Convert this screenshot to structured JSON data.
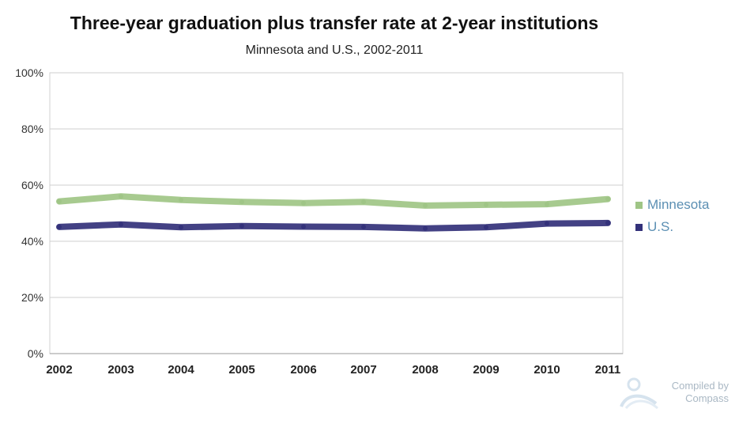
{
  "chart_data": {
    "type": "line",
    "title": "Three-year graduation plus transfer rate at 2-year institutions",
    "subtitle": "Minnesota and U.S., 2002-2011",
    "categories": [
      "2002",
      "2003",
      "2004",
      "2005",
      "2006",
      "2007",
      "2008",
      "2009",
      "2010",
      "2011"
    ],
    "series": [
      {
        "name": "Minnesota",
        "color": "#9fc586",
        "values": [
          54.2,
          56.0,
          54.7,
          54.0,
          53.6,
          54.0,
          52.7,
          53.0,
          53.2,
          55.0
        ]
      },
      {
        "name": "U.S.",
        "color": "#33317a",
        "values": [
          45.1,
          46.0,
          45.0,
          45.4,
          45.2,
          45.1,
          44.6,
          45.0,
          46.3,
          46.5
        ]
      }
    ],
    "yticks": [
      "0%",
      "20%",
      "40%",
      "60%",
      "80%",
      "100%"
    ],
    "ylim": [
      0,
      100
    ],
    "grid": true,
    "legend_position": "right"
  },
  "watermark": {
    "line1": "Compiled by",
    "line2": "Compass"
  }
}
